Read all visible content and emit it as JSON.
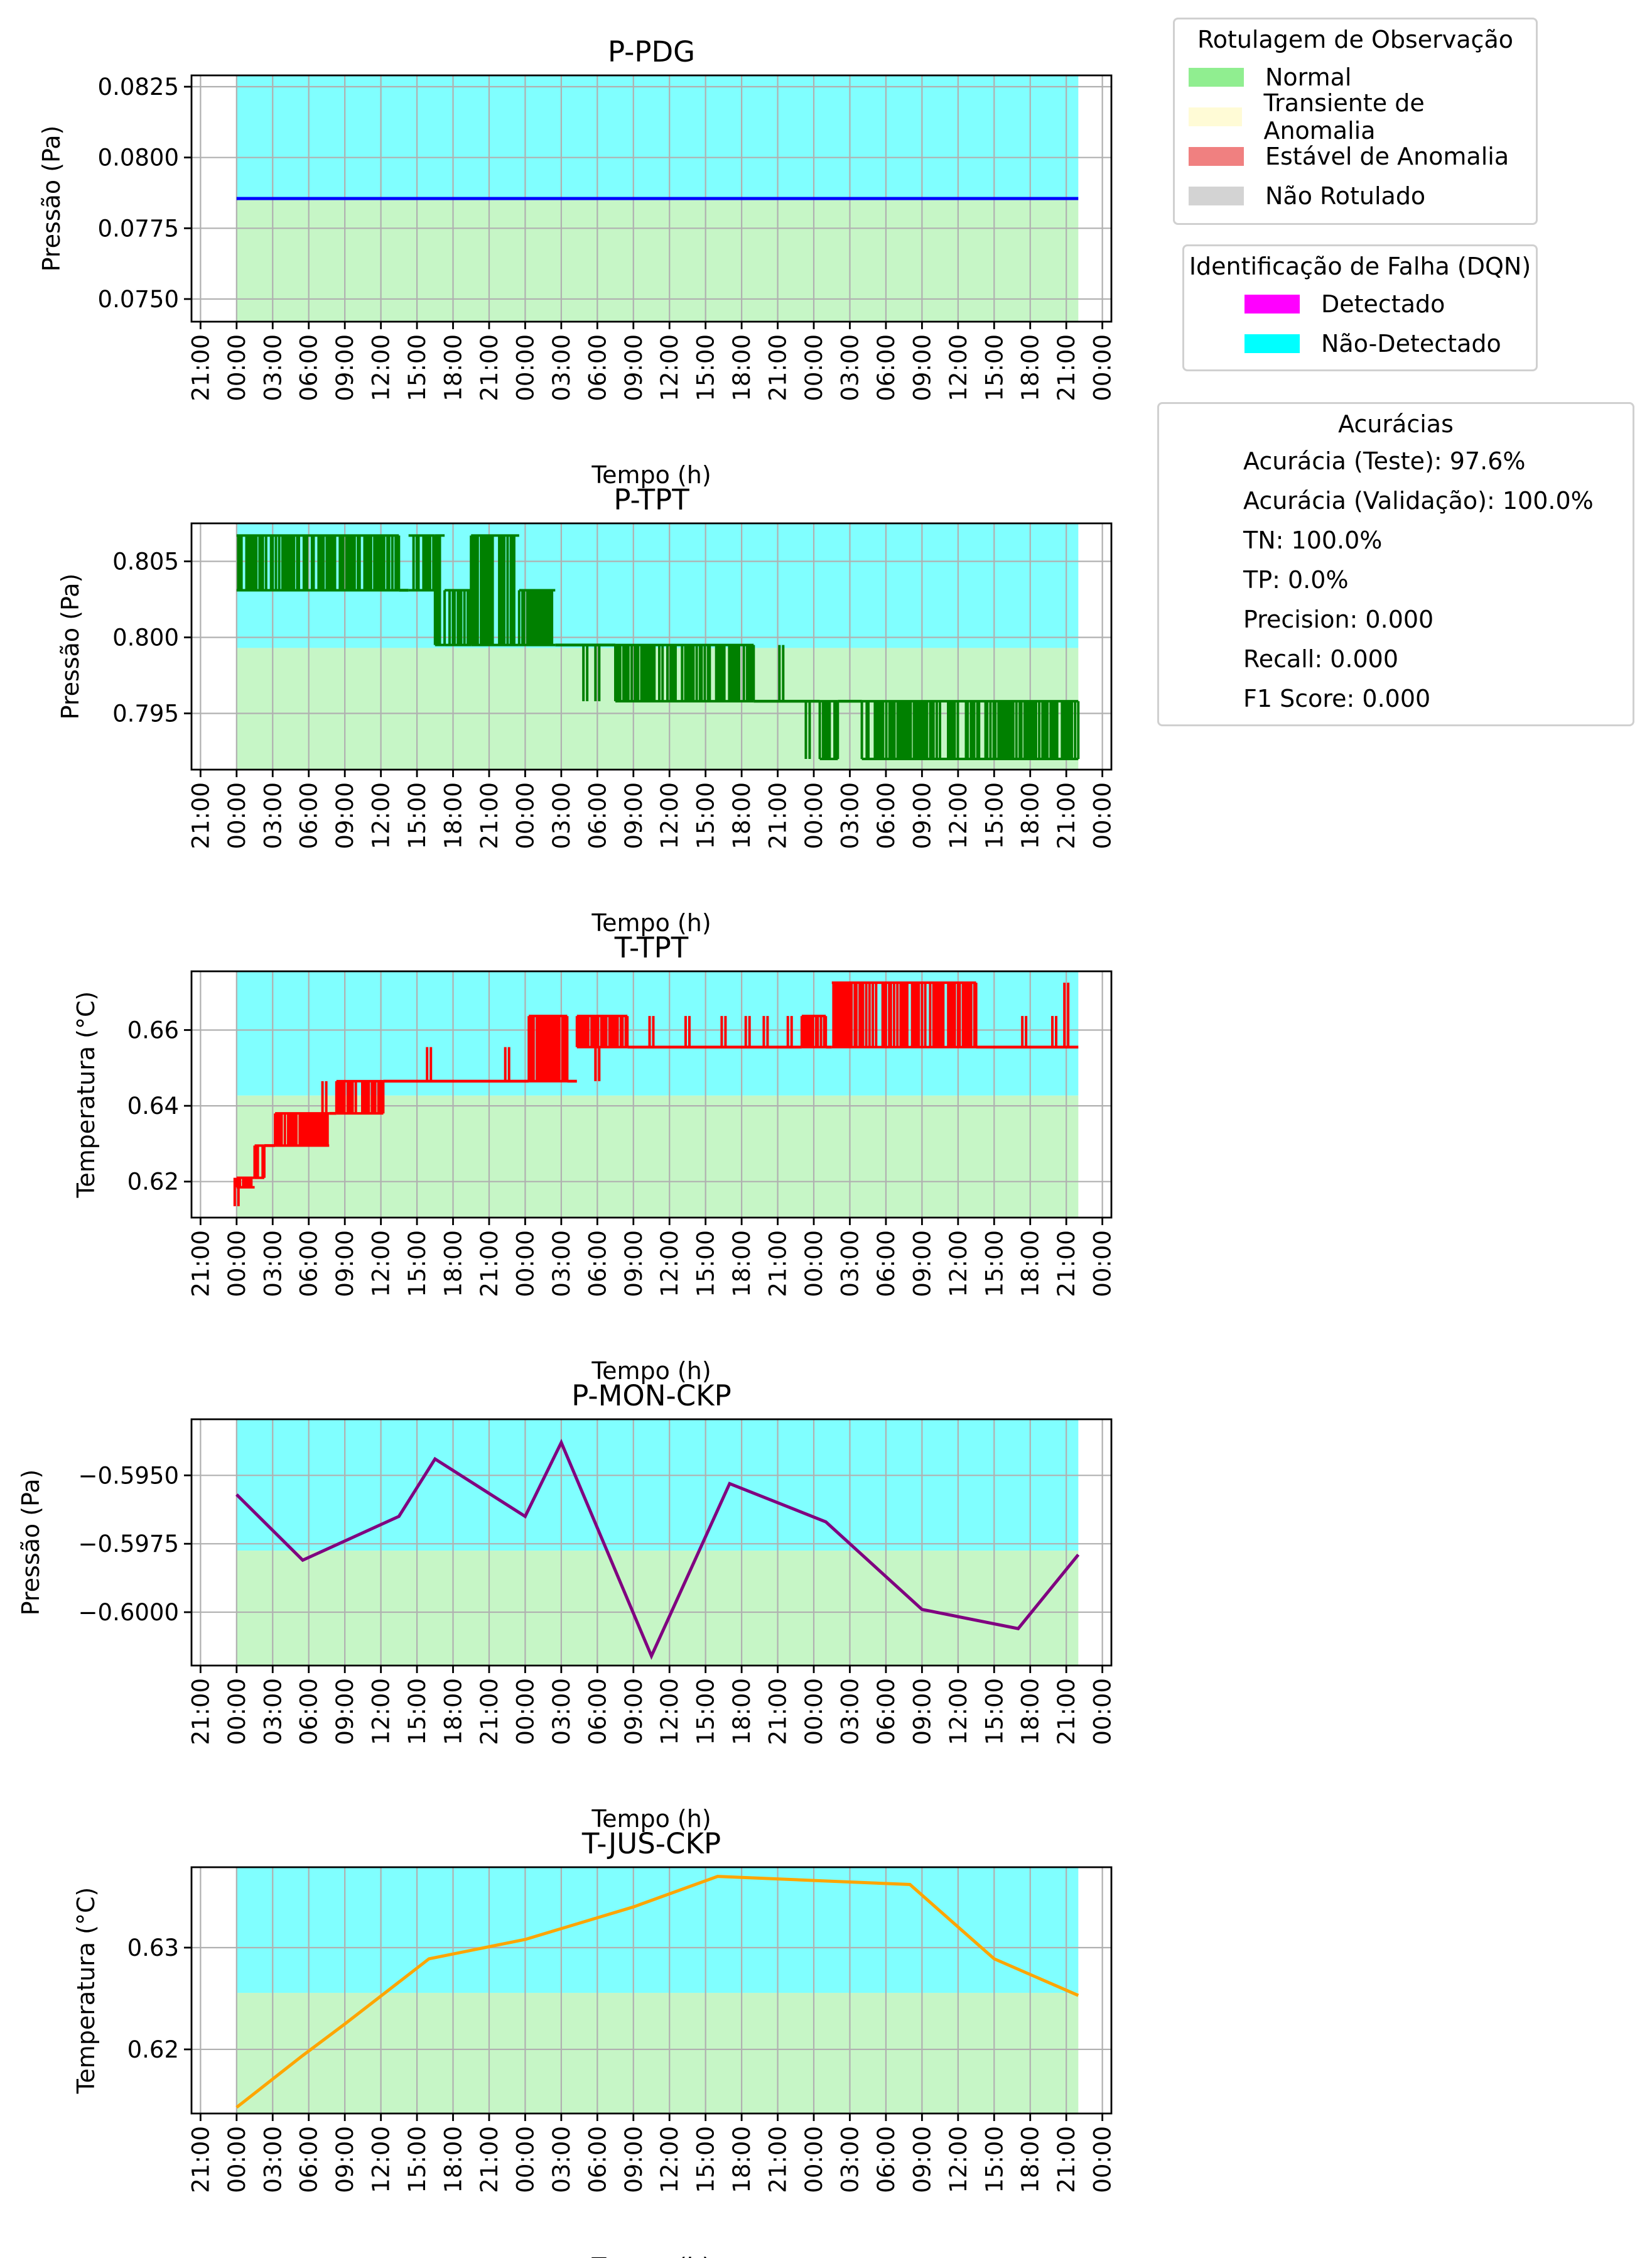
{
  "x_tick_labels": [
    "21:00",
    "00:00",
    "03:00",
    "06:00",
    "09:00",
    "12:00",
    "15:00",
    "18:00",
    "21:00",
    "00:00",
    "03:00",
    "06:00",
    "09:00",
    "12:00",
    "15:00",
    "18:00",
    "21:00",
    "00:00",
    "03:00",
    "06:00",
    "09:00",
    "12:00",
    "15:00",
    "18:00",
    "21:00",
    "00:00"
  ],
  "colors": {
    "normal": "#90ee90",
    "transient": "#fffbd6",
    "stable_anomaly": "#f08080",
    "unlabeled": "#d3d3d3",
    "detected": "#ff00ff",
    "not_detected": "#00ffff",
    "normal_fill": "#c6f6c6",
    "not_detected_fill": "#80ffff"
  },
  "legends": {
    "labeling": {
      "title": "Rotulagem de Observação",
      "items": [
        {
          "label": "Normal",
          "color": "#90ee90"
        },
        {
          "label": "Transiente de Anomalia",
          "color": "#fffbd6"
        },
        {
          "label": "Estável de Anomalia",
          "color": "#f08080"
        },
        {
          "label": "Não Rotulado",
          "color": "#d3d3d3"
        }
      ]
    },
    "detection": {
      "title": "Identificação de Falha (DQN)",
      "items": [
        {
          "label": "Detectado",
          "color": "#ff00ff"
        },
        {
          "label": "Não-Detectado",
          "color": "#00ffff"
        }
      ]
    },
    "accuracy": {
      "title": "Acurácias",
      "lines": [
        "Acurácia (Teste): 97.6%",
        "Acurácia (Validação): 100.0%",
        "TN: 100.0%",
        "TP: 0.0%",
        "Precision: 0.000",
        "Recall: 0.000",
        "F1 Score: 0.000"
      ]
    }
  },
  "chart_data": [
    {
      "type": "line",
      "title": "P-PDG",
      "xlabel": "Tempo (h)",
      "ylabel": "Pressão (Pa)",
      "color": "#0000ff",
      "ylim": [
        0.0742,
        0.0829
      ],
      "yticks": [
        0.075,
        0.0775,
        0.08,
        0.0825
      ],
      "ytick_labels": [
        "0.0750",
        "0.0775",
        "0.0800",
        "0.0825"
      ],
      "x_hours": [
        0,
        70
      ],
      "y": [
        0.07855,
        0.07855
      ],
      "normal_top": 0.07855
    },
    {
      "type": "line",
      "title": "P-TPT",
      "xlabel": "Tempo (h)",
      "ylabel": "Pressão (Pa)",
      "color": "#008000",
      "ylim": [
        0.7913,
        0.8075
      ],
      "yticks": [
        0.795,
        0.8,
        0.805
      ],
      "ytick_labels": [
        "0.795",
        "0.800",
        "0.805"
      ],
      "normal_top": 0.7993,
      "segments": [
        {
          "x0": 0,
          "x1": 13.5,
          "lo": 0.8031,
          "hi": 0.8067
        },
        {
          "x0": 14.3,
          "x1": 16.5,
          "lo": 0.8031,
          "hi": 0.8067
        },
        {
          "x0": 16.5,
          "x1": 17.3,
          "lo": 0.7995,
          "hi": 0.8067
        },
        {
          "x0": 17.3,
          "x1": 19.5,
          "lo": 0.7995,
          "hi": 0.8031
        },
        {
          "x0": 19.5,
          "x1": 23.5,
          "lo": 0.7995,
          "hi": 0.8067
        },
        {
          "x0": 23.5,
          "x1": 26.5,
          "lo": 0.7995,
          "hi": 0.8031
        },
        {
          "x0": 31.5,
          "x1": 43.0,
          "lo": 0.7958,
          "hi": 0.7995
        },
        {
          "x0": 48.5,
          "x1": 50.0,
          "lo": 0.792,
          "hi": 0.7958
        },
        {
          "x0": 52.0,
          "x1": 70.0,
          "lo": 0.792,
          "hi": 0.7958
        }
      ],
      "steps": [
        {
          "x0": 13.5,
          "x1": 14.3,
          "y": 0.8031
        },
        {
          "x0": 26.5,
          "x1": 31.5,
          "y": 0.7995
        },
        {
          "x0": 43.0,
          "x1": 48.5,
          "y": 0.7958
        },
        {
          "x0": 50.0,
          "x1": 52.0,
          "y": 0.7958
        }
      ],
      "spikes": [
        {
          "x": 29.0,
          "lo": 0.7958,
          "hi": 0.7995
        },
        {
          "x": 30.0,
          "lo": 0.7958,
          "hi": 0.7995
        },
        {
          "x": 45.3,
          "lo": 0.7958,
          "hi": 0.7995
        },
        {
          "x": 47.5,
          "lo": 0.792,
          "hi": 0.7958
        }
      ]
    },
    {
      "type": "line",
      "title": "T-TPT",
      "xlabel": "Tempo (h)",
      "ylabel": "Temperatura (°C)",
      "color": "#ff0000",
      "ylim": [
        0.6105,
        0.6755
      ],
      "yticks": [
        0.62,
        0.64,
        0.66
      ],
      "ytick_labels": [
        "0.62",
        "0.64",
        "0.66"
      ],
      "normal_top": 0.6427,
      "segments": [
        {
          "x0": 0,
          "x1": 1.5,
          "lo": 0.6185,
          "hi": 0.621
        },
        {
          "x0": 1.5,
          "x1": 2.3,
          "lo": 0.621,
          "hi": 0.6295
        },
        {
          "x0": 3.2,
          "x1": 7.7,
          "lo": 0.6295,
          "hi": 0.638
        },
        {
          "x0": 8.3,
          "x1": 12.2,
          "lo": 0.638,
          "hi": 0.6465
        },
        {
          "x0": 24.3,
          "x1": 27.5,
          "lo": 0.6465,
          "hi": 0.6637
        },
        {
          "x0": 28.3,
          "x1": 32.5,
          "lo": 0.6555,
          "hi": 0.6637
        },
        {
          "x0": 47.0,
          "x1": 49.0,
          "lo": 0.6555,
          "hi": 0.6637
        },
        {
          "x0": 49.5,
          "x1": 61.5,
          "lo": 0.6555,
          "hi": 0.6725
        }
      ],
      "steps": [
        {
          "x0": 0,
          "x1": 0,
          "y": 0.6135
        },
        {
          "x0": 2.3,
          "x1": 3.2,
          "y": 0.6295
        },
        {
          "x0": 7.7,
          "x1": 8.3,
          "y": 0.638
        },
        {
          "x0": 12.2,
          "x1": 24.3,
          "y": 0.6465
        },
        {
          "x0": 27.5,
          "x1": 28.3,
          "y": 0.6465
        },
        {
          "x0": 32.5,
          "x1": 47.0,
          "y": 0.6555
        },
        {
          "x0": 49.0,
          "x1": 49.5,
          "y": 0.6555
        },
        {
          "x0": 61.5,
          "x1": 70.0,
          "y": 0.6555
        }
      ],
      "spikes": [
        {
          "x": 0.0,
          "lo": 0.6135,
          "hi": 0.621
        },
        {
          "x": 2.3,
          "lo": 0.6295,
          "hi": 0.6295
        },
        {
          "x": 7.3,
          "lo": 0.6295,
          "hi": 0.6465
        },
        {
          "x": 16.0,
          "lo": 0.6465,
          "hi": 0.6555
        },
        {
          "x": 22.5,
          "lo": 0.6465,
          "hi": 0.6555
        },
        {
          "x": 30.0,
          "lo": 0.6465,
          "hi": 0.6555
        },
        {
          "x": 34.5,
          "lo": 0.6555,
          "hi": 0.6637
        },
        {
          "x": 37.5,
          "lo": 0.6555,
          "hi": 0.6637
        },
        {
          "x": 40.5,
          "lo": 0.6555,
          "hi": 0.6637
        },
        {
          "x": 42.5,
          "lo": 0.6555,
          "hi": 0.6637
        },
        {
          "x": 44.0,
          "lo": 0.6555,
          "hi": 0.6637
        },
        {
          "x": 46.0,
          "lo": 0.6555,
          "hi": 0.6637
        },
        {
          "x": 65.5,
          "lo": 0.6555,
          "hi": 0.6637
        },
        {
          "x": 68.0,
          "lo": 0.6555,
          "hi": 0.6637
        },
        {
          "x": 69.0,
          "lo": 0.6555,
          "hi": 0.6725
        }
      ]
    },
    {
      "type": "line",
      "title": "P-MON-CKP",
      "xlabel": "Tempo (h)",
      "ylabel": "Pressão (Pa)",
      "color": "#800080",
      "ylim": [
        -0.60195,
        -0.59295
      ],
      "yticks": [
        -0.6,
        -0.5975,
        -0.595
      ],
      "ytick_labels": [
        "−0.6000",
        "−0.5975",
        "−0.5950"
      ],
      "normal_top": -0.59775,
      "x_hours": [
        0,
        5.5,
        13.5,
        16.5,
        24.0,
        27.0,
        34.5,
        41.0,
        49.0,
        57.0,
        65.0,
        70.0
      ],
      "y": [
        -0.5957,
        -0.5981,
        -0.5965,
        -0.5944,
        -0.5965,
        -0.5938,
        -0.6016,
        -0.5953,
        -0.5967,
        -0.5999,
        -0.6006,
        -0.5979
      ]
    },
    {
      "type": "line",
      "title": "T-JUS-CKP",
      "xlabel": "Tempo (h)",
      "ylabel": "Temperatura (°C)",
      "color": "#ffa500",
      "ylim": [
        0.6137,
        0.6379
      ],
      "yticks": [
        0.62,
        0.63
      ],
      "ytick_labels": [
        "0.62",
        "0.63"
      ],
      "normal_top": 0.62555,
      "x_hours": [
        0,
        5.5,
        9.0,
        16.0,
        24.0,
        33.0,
        40.0,
        48.0,
        56.0,
        63.0,
        70.0
      ],
      "y": [
        0.6143,
        0.6194,
        0.6225,
        0.6289,
        0.6308,
        0.634,
        0.637,
        0.6366,
        0.6362,
        0.6289,
        0.6253
      ]
    }
  ]
}
